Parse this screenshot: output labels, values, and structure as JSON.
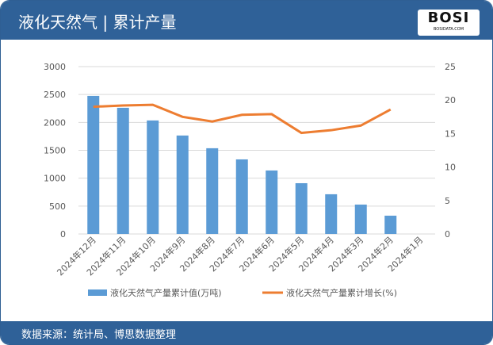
{
  "header": {
    "title": "液化天然气 | 累计产量",
    "logo_text": "BOSI",
    "logo_sub": "BOSIDATA.COM"
  },
  "footer": {
    "source": "数据来源：统计局、博思数据整理"
  },
  "colors": {
    "bar": "#5b9bd5",
    "line": "#ed7d31",
    "header": "#2f6198"
  },
  "chart_data": {
    "type": "bar+line",
    "categories": [
      "2024年12月",
      "2024年11月",
      "2024年10月",
      "2024年9月",
      "2024年8月",
      "2024年7月",
      "2024年6月",
      "2024年5月",
      "2024年4月",
      "2024年3月",
      "2024年2月",
      "2024年1月"
    ],
    "series": [
      {
        "name": "液化天然气产量累计值(万吨)",
        "type": "bar",
        "axis": "left",
        "values": [
          2475,
          2262,
          2035,
          1765,
          1537,
          1337,
          1138,
          910,
          712,
          527,
          328,
          null
        ]
      },
      {
        "name": "液化天然气产量累计增长(%)",
        "type": "line",
        "axis": "right",
        "values": [
          19.0,
          19.2,
          19.3,
          17.5,
          16.8,
          17.8,
          17.9,
          15.1,
          15.5,
          16.2,
          18.6,
          null
        ]
      }
    ],
    "yleft": {
      "ticks": [
        "0",
        "500",
        "1000",
        "1500",
        "2000",
        "2500",
        "3000"
      ],
      "ylim": [
        0,
        3000
      ]
    },
    "yright": {
      "ticks": [
        "0",
        "5",
        "10",
        "15",
        "20",
        "25"
      ],
      "ylim": [
        0,
        25
      ]
    },
    "grid": true,
    "legend": "bottom"
  }
}
